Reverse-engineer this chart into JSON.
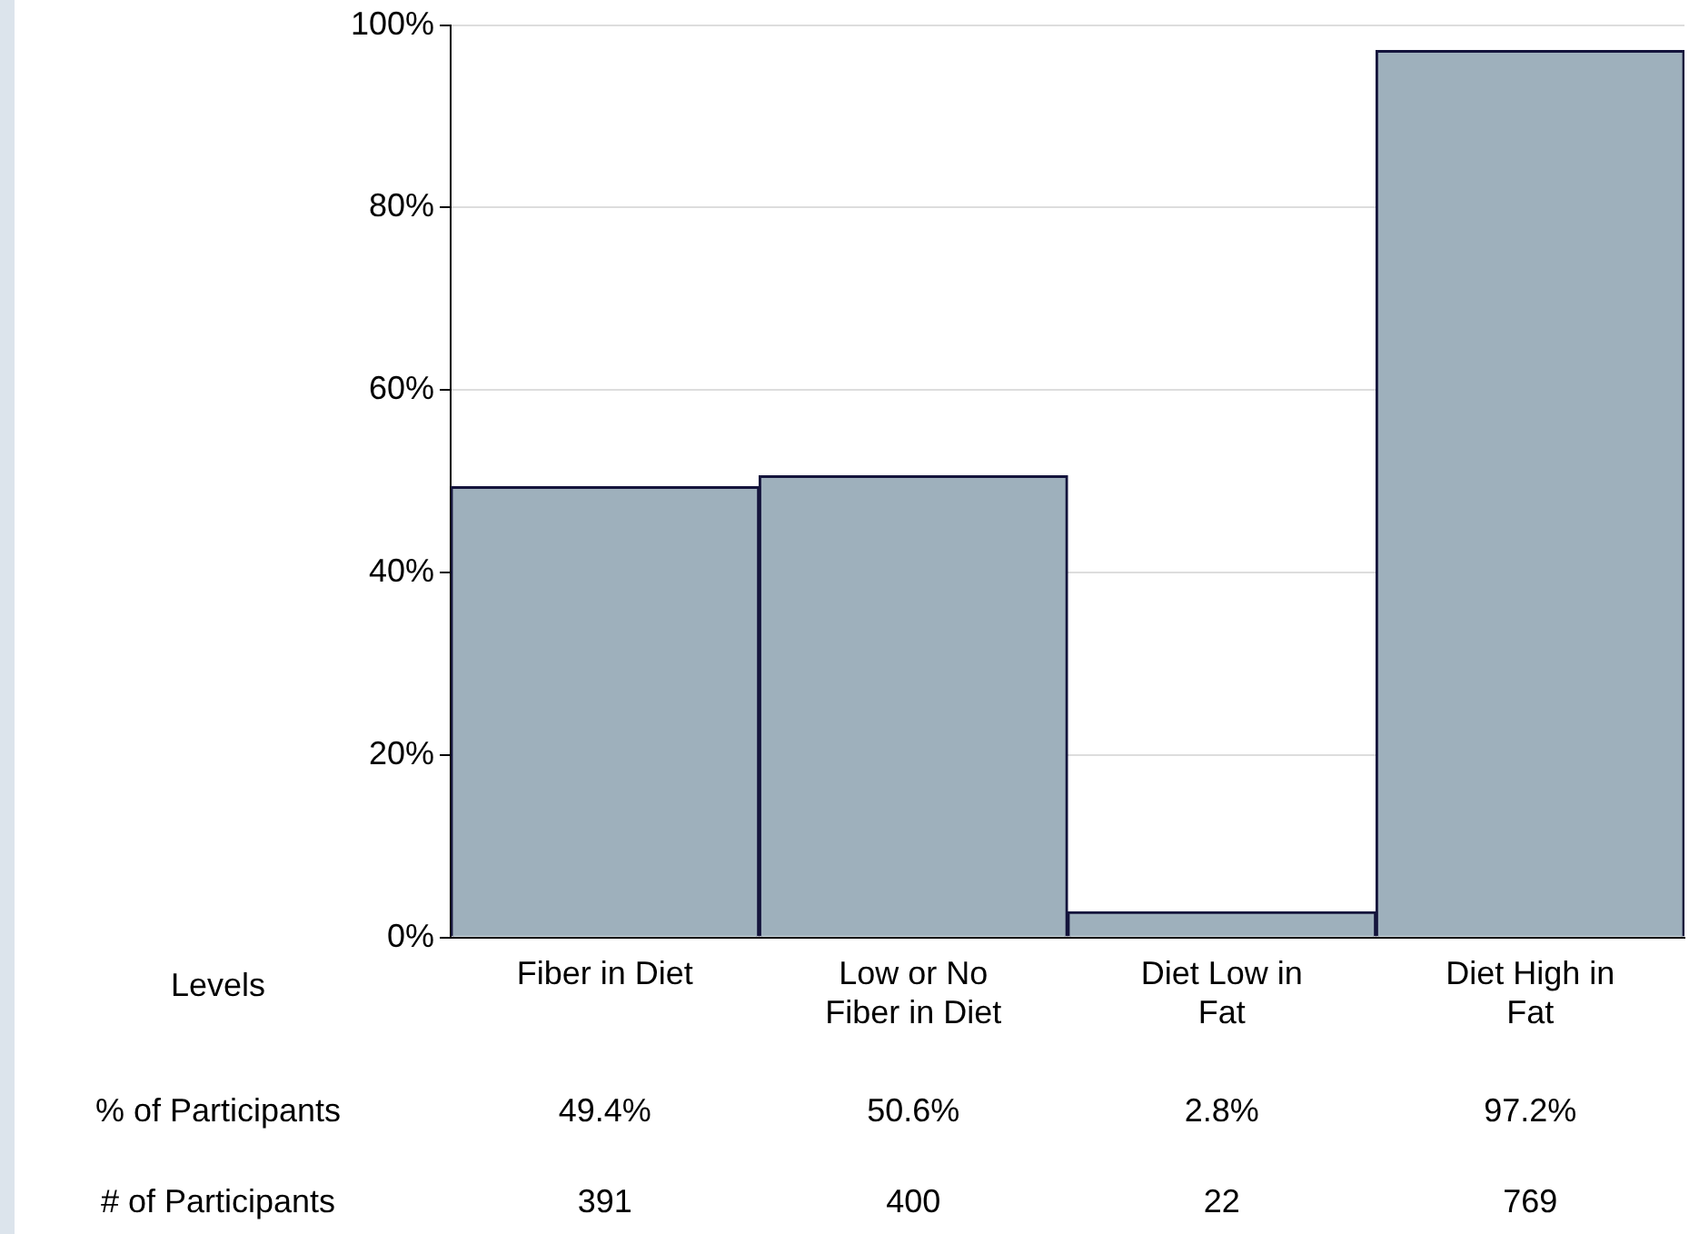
{
  "chart_data": {
    "type": "bar",
    "categories": [
      "Fiber in Diet",
      "Low or No Fiber in Diet",
      "Diet Low in Fat",
      "Diet High in Fat"
    ],
    "values": [
      49.4,
      50.6,
      2.8,
      97.2
    ],
    "value_labels": [
      "49.4%",
      "50.6%",
      "2.8%",
      "97.2%"
    ],
    "color": "#9eb0bc",
    "ylim": [
      0,
      100
    ],
    "yticks": [
      {
        "value": 0,
        "label": "0%"
      },
      {
        "value": 20,
        "label": "20%"
      },
      {
        "value": 40,
        "label": "40%"
      },
      {
        "value": 60,
        "label": "60%"
      },
      {
        "value": 80,
        "label": "80%"
      },
      {
        "value": 100,
        "label": "100%"
      }
    ],
    "grid": "y",
    "legend": false,
    "annotations": [
      "Levels",
      "% of Participants",
      "# of Participants",
      "391",
      "400",
      "22",
      "769"
    ]
  }
}
